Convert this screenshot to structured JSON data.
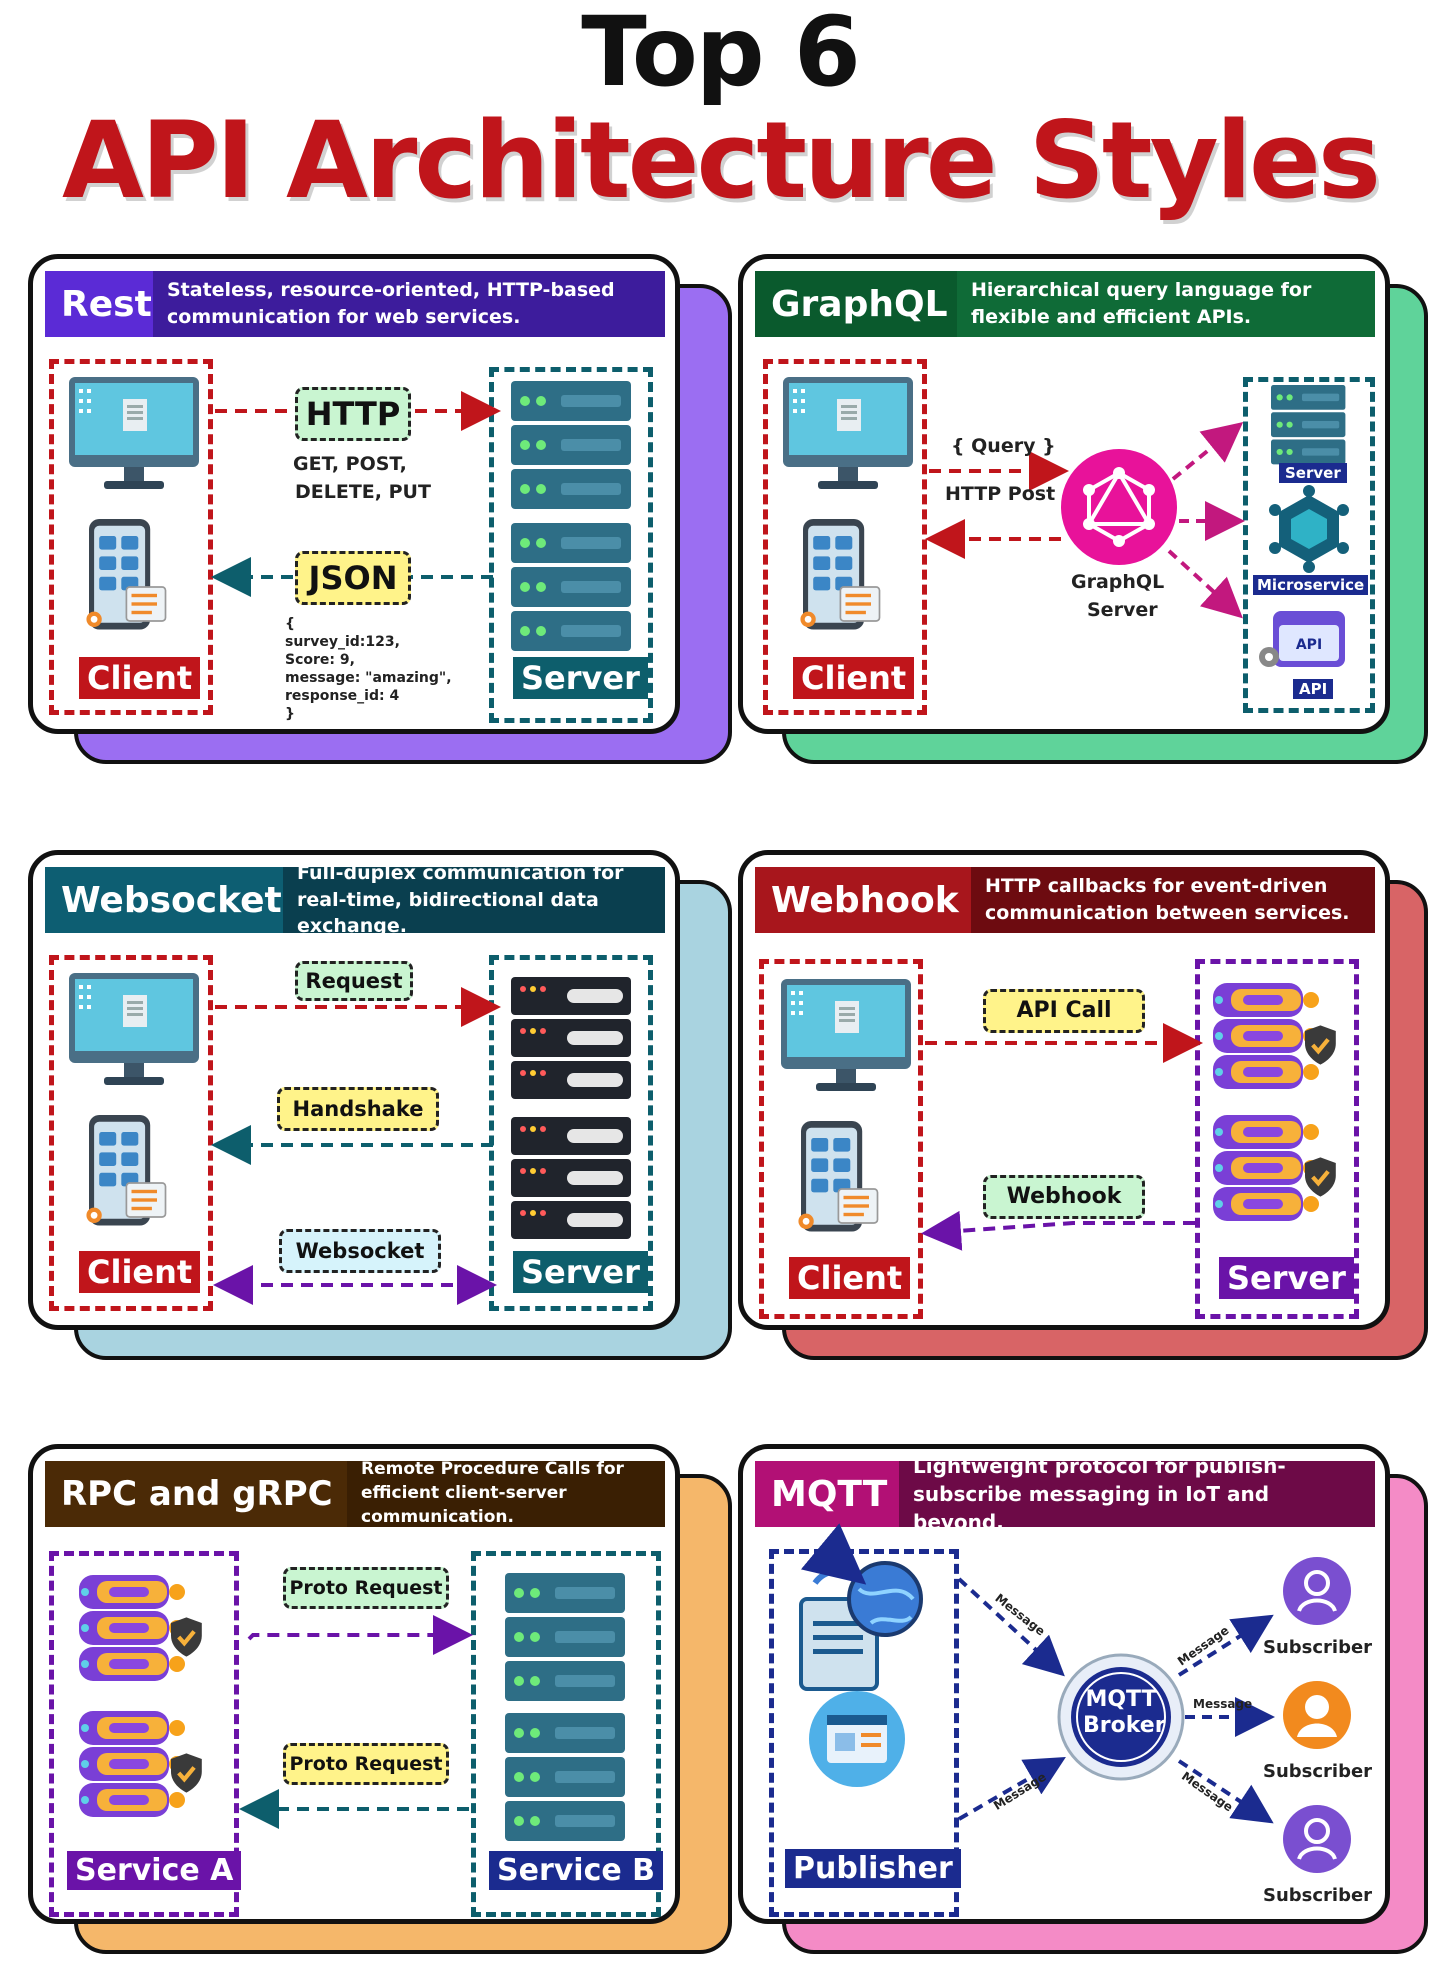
{
  "title": {
    "line1": "Top 6",
    "line2": "API Architecture Styles"
  },
  "rest": {
    "name": "Rest",
    "desc": "Stateless, resource-oriented, HTTP-based communication for web services.",
    "client": "Client",
    "server": "Server",
    "request_label": "HTTP",
    "methods_line1": "GET, POST,",
    "methods_line2": "DELETE, PUT",
    "response_label": "JSON",
    "json_lines": [
      "{",
      "survey_id:123,",
      "Score: 9,",
      "message: \"amazing\",",
      "response_id: 4",
      "}"
    ]
  },
  "graphql": {
    "name": "GraphQL",
    "desc": "Hierarchical query language for flexible and efficient APIs.",
    "client": "Client",
    "query": "{ Query }",
    "post": "HTTP Post",
    "server_line1": "GraphQL",
    "server_line2": "Server",
    "targets": [
      "Server",
      "Microservice",
      "API"
    ],
    "api_icon_text": "API"
  },
  "websocket": {
    "name": "Websocket",
    "desc": "Full-duplex communication for real-time, bidirectional data exchange.",
    "client": "Client",
    "server": "Server",
    "request": "Request",
    "handshake": "Handshake",
    "websocket": "Websocket"
  },
  "webhook": {
    "name": "Webhook",
    "desc": "HTTP callbacks for event-driven communication between services.",
    "client": "Client",
    "server": "Server",
    "api_call": "API Call",
    "webhook": "Webhook"
  },
  "rpc": {
    "name": "RPC and gRPC",
    "desc": "Remote Procedure Calls for efficient client-server communication.",
    "service_a": "Service A",
    "service_b": "Service B",
    "proto_request_1": "Proto Request",
    "proto_request_2": "Proto Request"
  },
  "mqtt": {
    "name": "MQTT",
    "desc": "Lightweight protocol for publish-subscribe messaging in IoT and beyond.",
    "publisher": "Publisher",
    "broker_line1": "MQTT",
    "broker_line2": "Broker",
    "message": "Message",
    "message_2": "Message",
    "message_3": "Message",
    "message_4": "Message",
    "subscriber_1": "Subscriber",
    "subscriber_2": "Subscriber",
    "subscriber_3": "Subscriber"
  },
  "colors": {
    "rest": "#5b2bd6",
    "rest_shadow": "#9b6ef2",
    "graphql": "#0f6b37",
    "graphql_shadow": "#5fd39a",
    "websocket": "#0d5e72",
    "websocket_shadow": "#a9d3e0",
    "webhook": "#a8161c",
    "webhook_shadow": "#d86466",
    "rpc": "#4b2a06",
    "rpc_shadow": "#f5b76a",
    "mqtt": "#b21075",
    "mqtt_shadow": "#f48bc6",
    "client_red": "#c0151b",
    "server_teal": "#0d5e6c",
    "server_navy": "#1b2b8f",
    "purple": "#6a13a8"
  }
}
